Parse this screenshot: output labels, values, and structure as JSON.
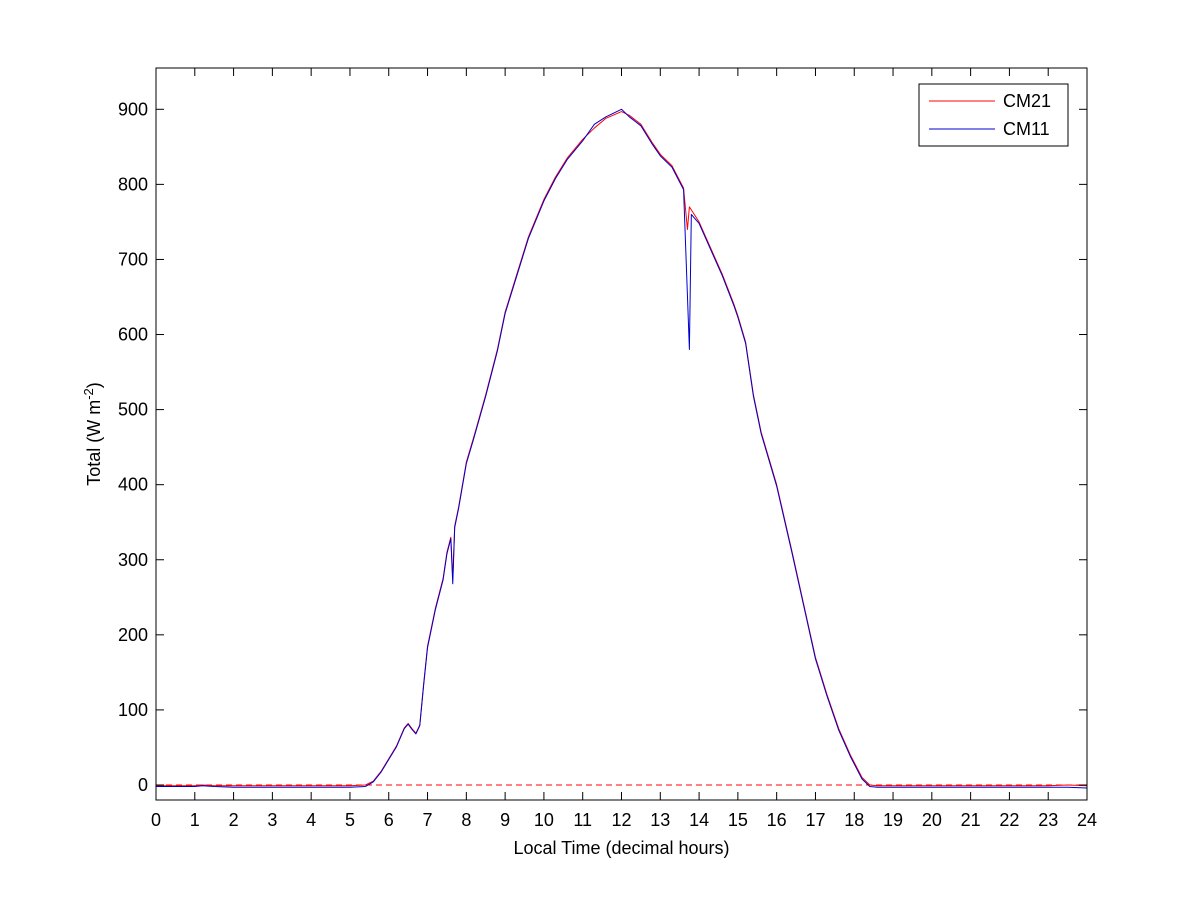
{
  "chart_data": {
    "type": "line",
    "title": "",
    "xlabel": "Local Time (decimal hours)",
    "ylabel": {
      "prefix": "Total (W m",
      "superscript": "-2",
      "suffix": ")"
    },
    "xlim": [
      0,
      24
    ],
    "ylim": [
      -20,
      955
    ],
    "x_ticks": [
      0,
      1,
      2,
      3,
      4,
      5,
      6,
      7,
      8,
      9,
      10,
      11,
      12,
      13,
      14,
      15,
      16,
      17,
      18,
      19,
      20,
      21,
      22,
      23,
      24
    ],
    "y_ticks": [
      0,
      100,
      200,
      300,
      400,
      500,
      600,
      700,
      800,
      900
    ],
    "grid": false,
    "legend_position": "top-right",
    "reference_line": {
      "y": 0,
      "style": "dashed",
      "color": "#ff0000"
    },
    "series": [
      {
        "name": "CM21",
        "color": "#ff0000",
        "points": [
          [
            0,
            -1
          ],
          [
            1,
            -1
          ],
          [
            1.2,
            0
          ],
          [
            1.5,
            -1
          ],
          [
            2,
            -1
          ],
          [
            3,
            -1
          ],
          [
            4,
            -1
          ],
          [
            5,
            -1
          ],
          [
            5.4,
            0
          ],
          [
            5.6,
            5
          ],
          [
            5.8,
            18
          ],
          [
            6.0,
            35
          ],
          [
            6.2,
            52
          ],
          [
            6.4,
            76
          ],
          [
            6.5,
            82
          ],
          [
            6.6,
            75
          ],
          [
            6.7,
            69
          ],
          [
            6.8,
            80
          ],
          [
            6.9,
            135
          ],
          [
            7.0,
            185
          ],
          [
            7.2,
            235
          ],
          [
            7.4,
            275
          ],
          [
            7.5,
            310
          ],
          [
            7.6,
            330
          ],
          [
            7.65,
            275
          ],
          [
            7.7,
            345
          ],
          [
            7.8,
            370
          ],
          [
            8.0,
            430
          ],
          [
            8.2,
            465
          ],
          [
            8.5,
            520
          ],
          [
            8.8,
            580
          ],
          [
            9.0,
            630
          ],
          [
            9.3,
            680
          ],
          [
            9.6,
            730
          ],
          [
            10.0,
            780
          ],
          [
            10.3,
            810
          ],
          [
            10.6,
            835
          ],
          [
            11.0,
            860
          ],
          [
            11.3,
            875
          ],
          [
            11.6,
            888
          ],
          [
            12.0,
            897
          ],
          [
            12.2,
            892
          ],
          [
            12.5,
            880
          ],
          [
            12.8,
            855
          ],
          [
            13.0,
            840
          ],
          [
            13.3,
            825
          ],
          [
            13.6,
            795
          ],
          [
            13.7,
            740
          ],
          [
            13.75,
            770
          ],
          [
            14.0,
            750
          ],
          [
            14.3,
            715
          ],
          [
            14.6,
            680
          ],
          [
            14.9,
            640
          ],
          [
            15.0,
            625
          ],
          [
            15.2,
            590
          ],
          [
            15.4,
            520
          ],
          [
            15.6,
            470
          ],
          [
            16.0,
            400
          ],
          [
            16.4,
            310
          ],
          [
            16.7,
            240
          ],
          [
            17.0,
            170
          ],
          [
            17.3,
            120
          ],
          [
            17.6,
            75
          ],
          [
            17.9,
            40
          ],
          [
            18.2,
            10
          ],
          [
            18.4,
            0
          ],
          [
            18.6,
            -1
          ],
          [
            19,
            -1
          ],
          [
            20,
            -1
          ],
          [
            21,
            -1
          ],
          [
            22,
            -1
          ],
          [
            23,
            -1
          ],
          [
            23.5,
            0
          ],
          [
            24,
            -1
          ]
        ]
      },
      {
        "name": "CM11",
        "color": "#0000cc",
        "points": [
          [
            0,
            -2
          ],
          [
            1,
            -2
          ],
          [
            1.2,
            -1
          ],
          [
            1.5,
            -2
          ],
          [
            2,
            -3
          ],
          [
            3,
            -3
          ],
          [
            4,
            -3
          ],
          [
            5,
            -3
          ],
          [
            5.4,
            -2
          ],
          [
            5.6,
            4
          ],
          [
            5.8,
            17
          ],
          [
            6.0,
            34
          ],
          [
            6.2,
            51
          ],
          [
            6.4,
            75
          ],
          [
            6.5,
            81
          ],
          [
            6.6,
            74
          ],
          [
            6.7,
            68
          ],
          [
            6.8,
            79
          ],
          [
            6.9,
            133
          ],
          [
            7.0,
            183
          ],
          [
            7.2,
            233
          ],
          [
            7.4,
            273
          ],
          [
            7.5,
            308
          ],
          [
            7.6,
            328
          ],
          [
            7.65,
            268
          ],
          [
            7.7,
            343
          ],
          [
            7.8,
            368
          ],
          [
            8.0,
            428
          ],
          [
            8.2,
            463
          ],
          [
            8.5,
            518
          ],
          [
            8.8,
            578
          ],
          [
            9.0,
            628
          ],
          [
            9.3,
            678
          ],
          [
            9.6,
            728
          ],
          [
            10.0,
            778
          ],
          [
            10.3,
            808
          ],
          [
            10.6,
            833
          ],
          [
            11.0,
            858
          ],
          [
            11.3,
            880
          ],
          [
            11.6,
            890
          ],
          [
            12.0,
            900
          ],
          [
            12.2,
            890
          ],
          [
            12.5,
            878
          ],
          [
            12.8,
            853
          ],
          [
            13.0,
            838
          ],
          [
            13.3,
            823
          ],
          [
            13.6,
            793
          ],
          [
            13.75,
            580
          ],
          [
            13.8,
            760
          ],
          [
            14.0,
            748
          ],
          [
            14.3,
            713
          ],
          [
            14.6,
            678
          ],
          [
            14.9,
            638
          ],
          [
            15.0,
            623
          ],
          [
            15.2,
            588
          ],
          [
            15.4,
            518
          ],
          [
            15.6,
            468
          ],
          [
            16.0,
            398
          ],
          [
            16.4,
            308
          ],
          [
            16.7,
            238
          ],
          [
            17.0,
            168
          ],
          [
            17.3,
            118
          ],
          [
            17.6,
            73
          ],
          [
            17.9,
            38
          ],
          [
            18.2,
            8
          ],
          [
            18.4,
            -2
          ],
          [
            18.6,
            -3
          ],
          [
            19,
            -3
          ],
          [
            20,
            -3
          ],
          [
            21,
            -3
          ],
          [
            22,
            -3
          ],
          [
            23,
            -3
          ],
          [
            23.5,
            -3
          ],
          [
            24,
            -4
          ]
        ]
      }
    ]
  }
}
